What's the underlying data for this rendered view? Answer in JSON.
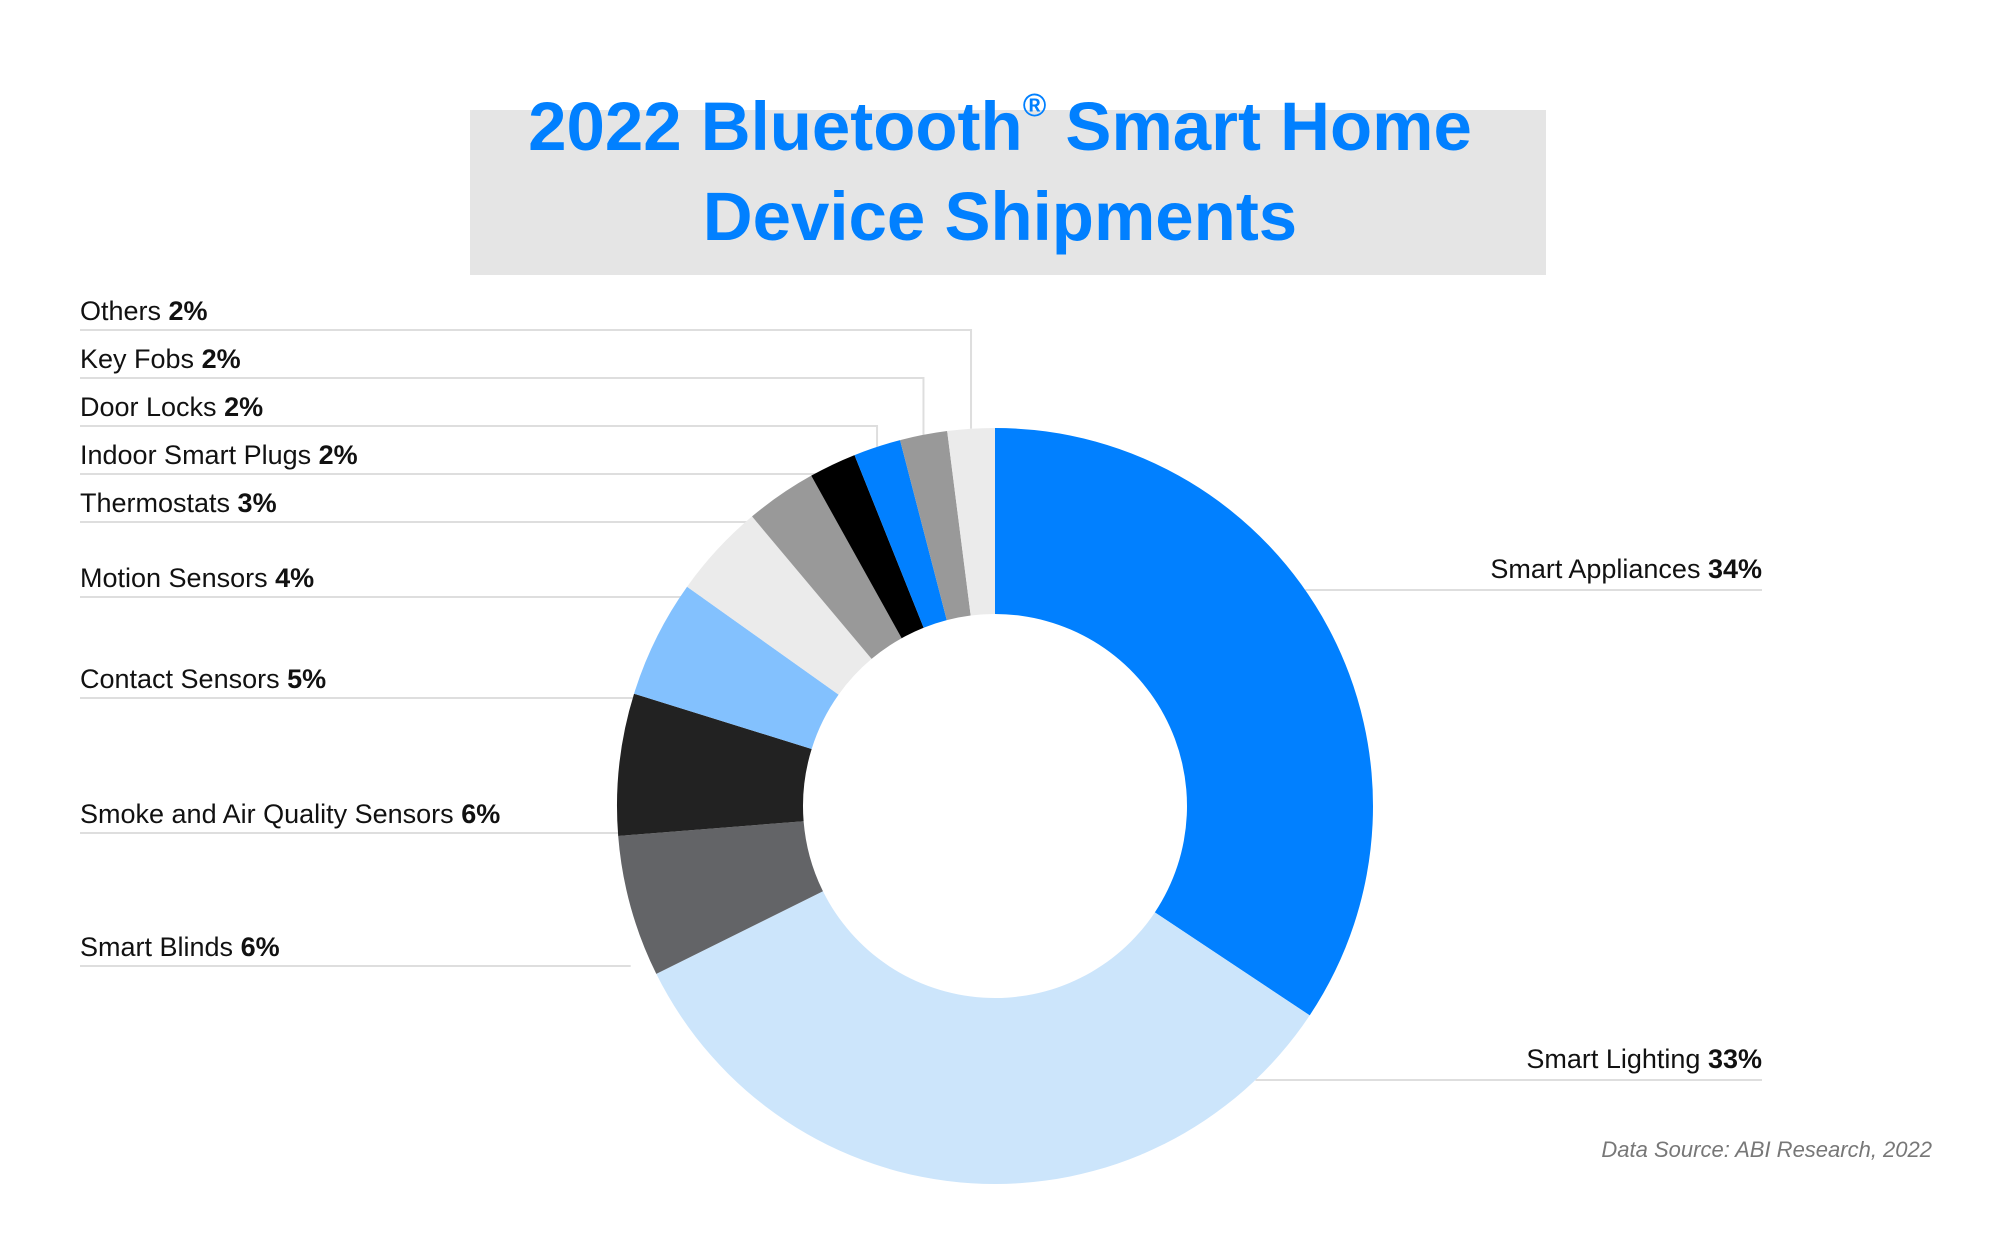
{
  "title": {
    "line1_a": "2022 Bluetooth",
    "line1_sup": "®",
    "line1_b": " Smart Home",
    "line2": "Device Shipments"
  },
  "source": "Data Source: ABI Research, 2022",
  "chart_data": {
    "type": "donut",
    "title": "2022 Bluetooth® Smart Home Device Shipments",
    "unit": "%",
    "slices": [
      {
        "label": "Smart Appliances",
        "value": 34,
        "pct_label": "34%",
        "color": "#0180ff",
        "side": "right"
      },
      {
        "label": "Smart Lighting",
        "value": 33,
        "pct_label": "33%",
        "color": "#cce5fb",
        "side": "right"
      },
      {
        "label": "Smart Blinds",
        "value": 6,
        "pct_label": "6%",
        "color": "#636467",
        "side": "left"
      },
      {
        "label": "Smoke and Air Quality Sensors",
        "value": 6,
        "pct_label": "6%",
        "color": "#222222",
        "side": "left"
      },
      {
        "label": "Contact Sensors",
        "value": 5,
        "pct_label": "5%",
        "color": "#83c1fe",
        "side": "left"
      },
      {
        "label": "Motion Sensors",
        "value": 4,
        "pct_label": "4%",
        "color": "#ebebeb",
        "side": "left"
      },
      {
        "label": "Thermostats",
        "value": 3,
        "pct_label": "3%",
        "color": "#999999",
        "side": "left"
      },
      {
        "label": "Indoor Smart Plugs",
        "value": 2,
        "pct_label": "2%",
        "color": "#000000",
        "side": "left"
      },
      {
        "label": "Door Locks",
        "value": 2,
        "pct_label": "2%",
        "color": "#0180ff",
        "side": "left"
      },
      {
        "label": "Key Fobs",
        "value": 2,
        "pct_label": "2%",
        "color": "#999999",
        "side": "left"
      },
      {
        "label": "Others",
        "value": 2,
        "pct_label": "2%",
        "color": "#ebebeb",
        "side": "left"
      }
    ]
  }
}
